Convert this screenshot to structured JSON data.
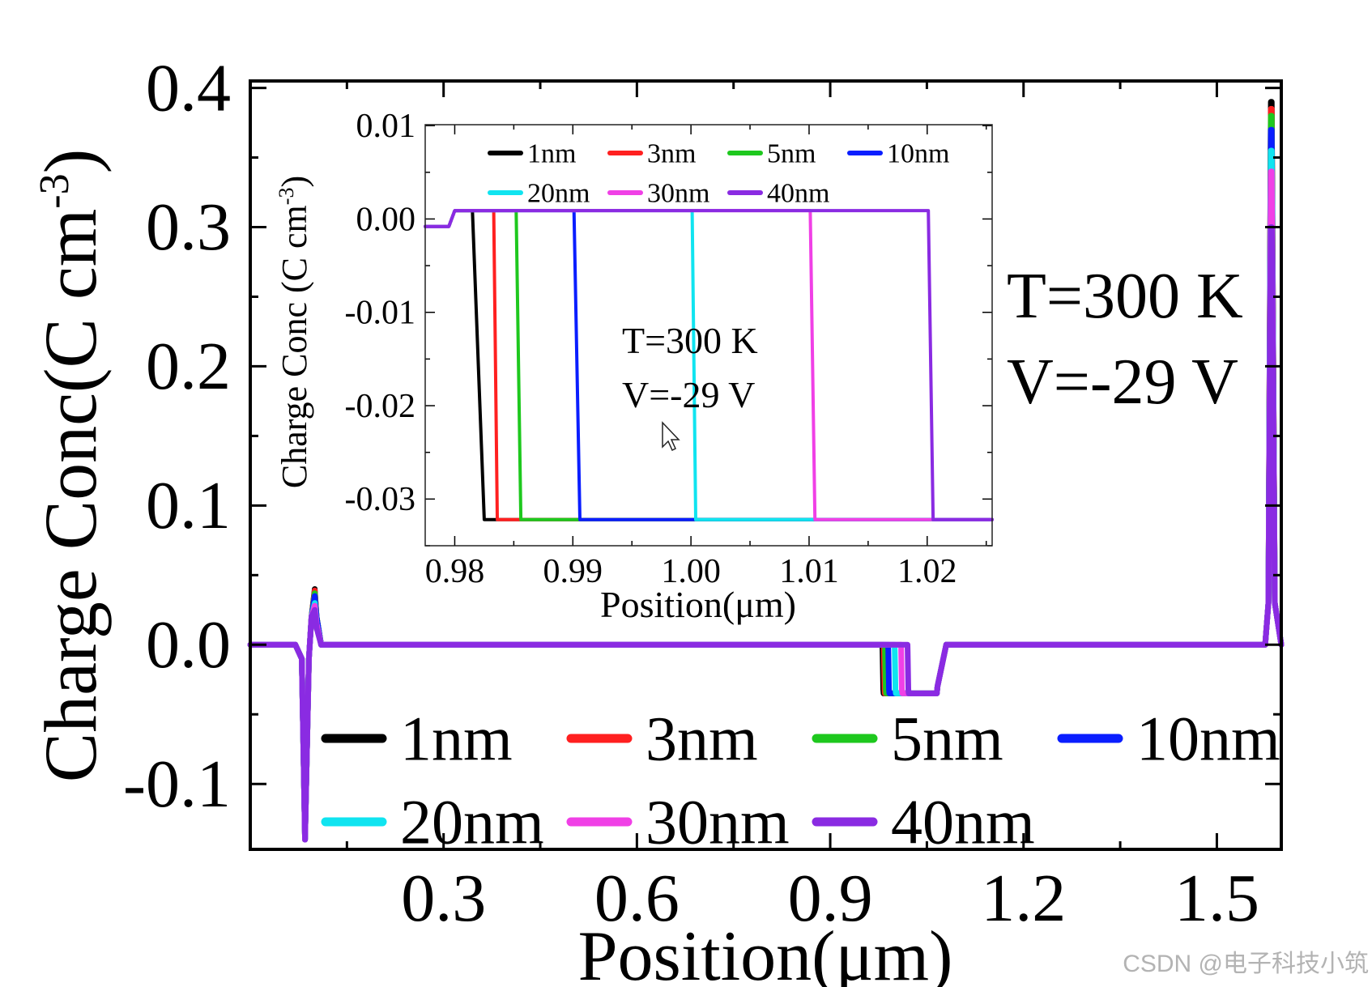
{
  "chart_data": [
    {
      "id": "main",
      "type": "line",
      "xlabel": "Position(μm)",
      "ylabel_main": "Charge Conc(C cm",
      "ylabel_sup": "-3",
      "ylabel_close": ")",
      "xlim": [
        0.0,
        1.6
      ],
      "ylim": [
        -0.147,
        0.405
      ],
      "xticks": [
        0.3,
        0.6,
        0.9,
        1.2,
        1.5
      ],
      "xtick_labels": [
        "0.3",
        "0.6",
        "0.9",
        "1.2",
        "1.5"
      ],
      "yticks": [
        -0.1,
        0.0,
        0.1,
        0.2,
        0.3,
        0.4
      ],
      "ytick_labels": [
        "-0.1",
        "0.0",
        "0.1",
        "0.2",
        "0.3",
        "0.4"
      ],
      "annotation_lines": [
        "T=300 K",
        "V=-29 V"
      ],
      "legend_placement": "bottom-left",
      "series": [
        {
          "name": "1nm",
          "color": "#000000",
          "x": [
            0.0,
            0.07,
            0.08,
            0.085,
            0.091,
            0.095,
            0.1,
            0.103,
            0.11,
            0.981,
            0.9812,
            0.9822,
            0.9828,
            1.0655,
            1.0665,
            1.08,
            1.575,
            1.58,
            1.5838,
            1.5852,
            1.59,
            1.6
          ],
          "y": [
            0.0,
            0.0,
            -0.01,
            -0.14,
            -0.01,
            0.02,
            0.04,
            0.02,
            0.0,
            0.0,
            -0.005,
            -0.032,
            -0.035,
            -0.035,
            -0.03,
            0.0,
            0.0,
            0.03,
            0.39,
            0.39,
            0.03,
            0.0
          ]
        },
        {
          "name": "3nm",
          "color": "#ff2020",
          "x": [
            0.0,
            0.07,
            0.08,
            0.085,
            0.091,
            0.095,
            0.1,
            0.103,
            0.11,
            0.983,
            0.9832,
            0.9842,
            0.9848,
            1.0655,
            1.0665,
            1.08,
            1.575,
            1.58,
            1.5838,
            1.5852,
            1.59,
            1.6
          ],
          "y": [
            0.0,
            0.0,
            -0.01,
            -0.14,
            -0.01,
            0.02,
            0.039,
            0.02,
            0.0,
            0.0,
            -0.005,
            -0.032,
            -0.035,
            -0.035,
            -0.03,
            0.0,
            0.0,
            0.03,
            0.385,
            0.385,
            0.03,
            0.0
          ]
        },
        {
          "name": "5nm",
          "color": "#1ec81e",
          "x": [
            0.0,
            0.07,
            0.08,
            0.085,
            0.091,
            0.095,
            0.1,
            0.103,
            0.11,
            0.985,
            0.9852,
            0.9862,
            0.9868,
            1.0655,
            1.0665,
            1.08,
            1.575,
            1.58,
            1.5838,
            1.5852,
            1.59,
            1.6
          ],
          "y": [
            0.0,
            0.0,
            -0.01,
            -0.14,
            -0.01,
            0.02,
            0.037,
            0.02,
            0.0,
            0.0,
            -0.005,
            -0.032,
            -0.035,
            -0.035,
            -0.03,
            0.0,
            0.0,
            0.03,
            0.38,
            0.38,
            0.03,
            0.0
          ]
        },
        {
          "name": "10nm",
          "color": "#0a1eff",
          "x": [
            0.0,
            0.07,
            0.08,
            0.085,
            0.091,
            0.095,
            0.1,
            0.103,
            0.11,
            0.99,
            0.9902,
            0.9912,
            0.9918,
            1.0655,
            1.0665,
            1.08,
            1.575,
            1.58,
            1.5838,
            1.5852,
            1.59,
            1.6
          ],
          "y": [
            0.0,
            0.0,
            -0.01,
            -0.14,
            -0.01,
            0.02,
            0.035,
            0.02,
            0.0,
            0.0,
            -0.005,
            -0.032,
            -0.035,
            -0.035,
            -0.03,
            0.0,
            0.0,
            0.03,
            0.37,
            0.37,
            0.03,
            0.0
          ]
        },
        {
          "name": "20nm",
          "color": "#10e4f0",
          "x": [
            0.0,
            0.07,
            0.08,
            0.085,
            0.091,
            0.095,
            0.1,
            0.103,
            0.11,
            1.0,
            1.0002,
            1.0012,
            1.0018,
            1.0655,
            1.0665,
            1.08,
            1.575,
            1.58,
            1.5838,
            1.5852,
            1.59,
            1.6
          ],
          "y": [
            0.0,
            0.0,
            -0.01,
            -0.14,
            -0.01,
            0.02,
            0.03,
            0.015,
            0.0,
            0.0,
            -0.005,
            -0.032,
            -0.035,
            -0.035,
            -0.03,
            0.0,
            0.0,
            0.03,
            0.355,
            0.355,
            0.03,
            0.0
          ]
        },
        {
          "name": "30nm",
          "color": "#f040e6",
          "x": [
            0.0,
            0.07,
            0.08,
            0.085,
            0.091,
            0.095,
            0.1,
            0.103,
            0.11,
            1.01,
            1.0102,
            1.0112,
            1.0118,
            1.0655,
            1.0665,
            1.08,
            1.575,
            1.58,
            1.5838,
            1.5852,
            1.59,
            1.6
          ],
          "y": [
            0.0,
            0.0,
            -0.01,
            -0.14,
            -0.01,
            0.02,
            0.028,
            0.015,
            0.0,
            0.0,
            -0.005,
            -0.032,
            -0.035,
            -0.035,
            -0.03,
            0.0,
            0.0,
            0.03,
            0.34,
            0.34,
            0.03,
            0.0
          ]
        },
        {
          "name": "40nm",
          "color": "#8a2be2",
          "x": [
            0.0,
            0.07,
            0.08,
            0.085,
            0.091,
            0.095,
            0.1,
            0.103,
            0.11,
            1.02,
            1.0202,
            1.0212,
            1.0218,
            1.0655,
            1.0665,
            1.08,
            1.575,
            1.58,
            1.5838,
            1.5852,
            1.59,
            1.6
          ],
          "y": [
            0.0,
            0.0,
            -0.01,
            -0.14,
            -0.01,
            0.02,
            0.025,
            0.012,
            0.0,
            0.0,
            -0.005,
            -0.032,
            -0.035,
            -0.035,
            -0.03,
            0.0,
            0.0,
            0.03,
            0.3,
            0.3,
            0.03,
            0.0
          ]
        }
      ]
    },
    {
      "id": "inset",
      "type": "line",
      "xlabel": "Position(μm)",
      "ylabel_main": "Charge Conc (C cm",
      "ylabel_sup": "-3",
      "ylabel_close": ")",
      "xlim": [
        0.9775,
        1.0255
      ],
      "ylim": [
        -0.035,
        0.0101
      ],
      "xticks": [
        0.98,
        0.99,
        1.0,
        1.01,
        1.02
      ],
      "xtick_labels": [
        "0.98",
        "0.99",
        "1.00",
        "1.01",
        "1.02"
      ],
      "yticks": [
        0.01,
        0.0,
        -0.01,
        -0.02,
        -0.03
      ],
      "ytick_labels": [
        "0.01",
        "0.00",
        "-0.01",
        "-0.02",
        "-0.03"
      ],
      "annotation_lines": [
        "T=300 K",
        "V=-29 V"
      ],
      "legend_placement": "top",
      "series": [
        {
          "name": "1nm",
          "color": "#000000",
          "x": [
            0.9775,
            0.9795,
            0.98,
            0.981,
            0.9815,
            0.9825,
            0.9835,
            1.0255
          ],
          "y": [
            -0.0008,
            -0.0008,
            0.0009,
            0.0009,
            0.0009,
            -0.0322,
            -0.0322,
            -0.0322
          ]
        },
        {
          "name": "3nm",
          "color": "#ff2020",
          "x": [
            0.9775,
            0.9795,
            0.98,
            0.983,
            0.9833,
            0.9836,
            0.9845,
            1.0255
          ],
          "y": [
            -0.0008,
            -0.0008,
            0.0009,
            0.0009,
            0.0009,
            -0.0322,
            -0.0322,
            -0.0322
          ]
        },
        {
          "name": "5nm",
          "color": "#1ec81e",
          "x": [
            0.9775,
            0.9795,
            0.98,
            0.985,
            0.9852,
            0.9856,
            0.9865,
            1.0255
          ],
          "y": [
            -0.0008,
            -0.0008,
            0.0009,
            0.0009,
            0.0009,
            -0.0322,
            -0.0322,
            -0.0322
          ]
        },
        {
          "name": "10nm",
          "color": "#0a1eff",
          "x": [
            0.9775,
            0.9795,
            0.98,
            0.99,
            0.9901,
            0.9906,
            0.9915,
            1.0255
          ],
          "y": [
            -0.0008,
            -0.0008,
            0.0009,
            0.0009,
            0.0009,
            -0.0322,
            -0.0322,
            -0.0322
          ]
        },
        {
          "name": "20nm",
          "color": "#10e4f0",
          "x": [
            0.9775,
            0.9795,
            0.98,
            1.0,
            1.0001,
            1.0004,
            1.0015,
            1.0255
          ],
          "y": [
            -0.0008,
            -0.0008,
            0.0009,
            0.0009,
            0.0009,
            -0.0322,
            -0.0322,
            -0.0322
          ]
        },
        {
          "name": "30nm",
          "color": "#f040e6",
          "x": [
            0.9775,
            0.9795,
            0.98,
            1.01,
            1.0101,
            1.0105,
            1.0115,
            1.0255
          ],
          "y": [
            -0.0008,
            -0.0008,
            0.0009,
            0.0009,
            0.0009,
            -0.0322,
            -0.0322,
            -0.0322
          ]
        },
        {
          "name": "40nm",
          "color": "#8a2be2",
          "x": [
            0.9775,
            0.9795,
            0.98,
            1.02,
            1.0201,
            1.0205,
            1.0255
          ],
          "y": [
            -0.0008,
            -0.0008,
            0.0009,
            0.0009,
            0.0009,
            -0.0322,
            -0.0322
          ]
        }
      ]
    }
  ],
  "watermark": "CSDN @电子科技小筑",
  "cursor_icon": "mouse-pointer-icon"
}
